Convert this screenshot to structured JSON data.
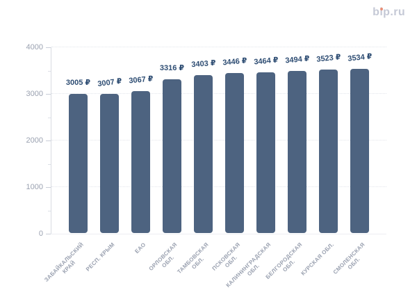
{
  "page": {
    "background_color": "#ffffff"
  },
  "logo": {
    "text": "bip.ru",
    "text_color": "#c5c9d6",
    "i_dot_color": "#e98e76"
  },
  "chart_data": {
    "type": "bar",
    "title": "",
    "xlabel": "",
    "ylabel": "",
    "categories": [
      "ЗАБАЙКАЛЬСКИЙ КРАЙ",
      "РЕСП. КРЫМ",
      "ЕАО",
      "ОРЛОВСКАЯ ОБЛ.",
      "ТАМБОВСКАЯ ОБЛ.",
      "ПСКОВСКАЯ ОБЛ.",
      "КАЛИНИНГРАДСКАЯ ОБЛ.",
      "БЕЛГОРОДСКАЯ ОБЛ.",
      "КУРСКАЯ ОБЛ.",
      "СМОЛЕНСКАЯ ОБЛ."
    ],
    "category_lines": [
      [
        "ЗАБАЙКАЛЬСКИЙ",
        "КРАЙ"
      ],
      [
        "РЕСП. КРЫМ"
      ],
      [
        "ЕАО"
      ],
      [
        "ОРЛОВСКАЯ",
        "ОБЛ."
      ],
      [
        "ТАМБОВСКАЯ",
        "ОБЛ."
      ],
      [
        "ПСКОВСКАЯ",
        "ОБЛ."
      ],
      [
        "КАЛИНИНГРАДСКАЯ",
        "ОБЛ."
      ],
      [
        "БЕЛГОРОДСКАЯ",
        "ОБЛ."
      ],
      [
        "КУРСКАЯ ОБЛ."
      ],
      [
        "СМОЛЕНСКАЯ",
        "ОБЛ."
      ]
    ],
    "values": [
      3005,
      3007,
      3067,
      3316,
      3403,
      3446,
      3464,
      3494,
      3523,
      3534
    ],
    "value_labels": [
      "3005 ₽",
      "3007 ₽",
      "3067 ₽",
      "3316 ₽",
      "3403 ₽",
      "3446 ₽",
      "3464 ₽",
      "3494 ₽",
      "3523 ₽",
      "3534 ₽"
    ],
    "currency_symbol": "₽",
    "ylim": [
      0,
      4000
    ],
    "y_ticks": [
      0,
      1000,
      2000,
      3000,
      4000
    ],
    "y_tick_labels": [
      "0",
      "1000",
      "2000",
      "3000",
      "4000"
    ],
    "y_minor_ticks": [
      500,
      1500,
      2500,
      3500
    ],
    "grid": "horizontal dotted at major ticks",
    "legend": "none",
    "x_label_rotation_deg": -45,
    "bar_color": "#4d6380",
    "value_label_color": "#2e4d73",
    "axis_label_color": "#9aa1b0"
  }
}
